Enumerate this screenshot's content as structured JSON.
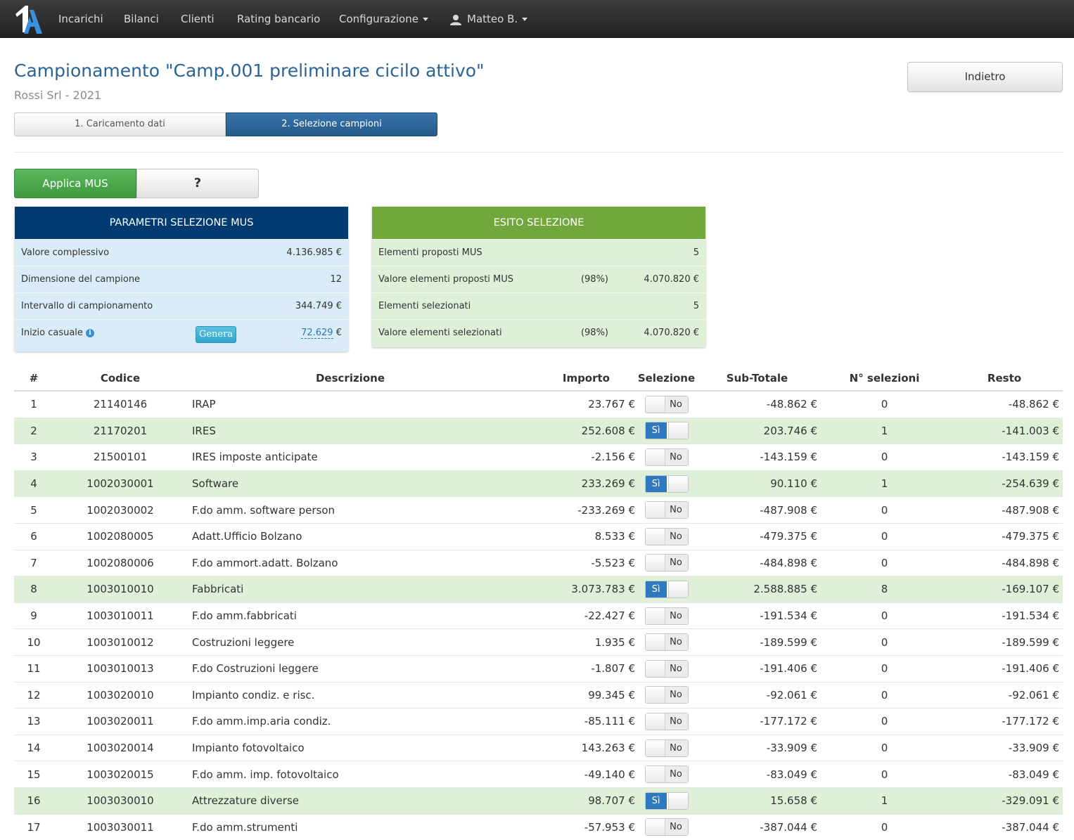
{
  "nav": {
    "logo_text": "1A",
    "items": [
      "Incarichi",
      "Bilanci",
      "Clienti",
      "Rating bancario"
    ],
    "config_label": "Configurazione",
    "user_label": "Matteo B."
  },
  "header": {
    "title": "Campionamento \"Camp.001 preliminare cicilo attivo\"",
    "subtitle": "Rossi Srl - 2021",
    "back_label": "Indietro"
  },
  "steps": {
    "step1": "1. Caricamento dati",
    "step2": "2. Selezione campioni",
    "active": 2
  },
  "actions": {
    "mus_label": "Applica MUS",
    "help_label": "?"
  },
  "params_panel": {
    "title": "PARAMETRI SELEZIONE MUS",
    "rows": [
      {
        "label": "Valore complessivo",
        "value": "4.136.985 €"
      },
      {
        "label": "Dimensione del campione",
        "value": "12"
      },
      {
        "label": "Intervallo di campionamento",
        "value": "344.749 €"
      }
    ],
    "random_start": {
      "label": "Inizio casuale",
      "button": "Genera",
      "value": "72.629",
      "currency": "€"
    }
  },
  "result_panel": {
    "title": "ESITO SELEZIONE",
    "rows": [
      {
        "label": "Elementi proposti MUS",
        "pct": "",
        "value": "5"
      },
      {
        "label": "Valore elementi proposti MUS",
        "pct": "(98%)",
        "value": "4.070.820 €"
      },
      {
        "label": "Elementi selezionati",
        "pct": "",
        "value": "5"
      },
      {
        "label": "Valore elementi selezionati",
        "pct": "(98%)",
        "value": "4.070.820 €"
      }
    ]
  },
  "table": {
    "headers": {
      "num": "#",
      "code": "Codice",
      "desc": "Descrizione",
      "amount": "Importo",
      "selection": "Selezione",
      "subtotal": "Sub-Totale",
      "nsel": "N° selezioni",
      "rest": "Resto"
    },
    "toggle_on": "Sì",
    "toggle_off": "No",
    "rows": [
      {
        "num": "1",
        "code": "21140146",
        "desc": "IRAP",
        "amount": "23.767 €",
        "selected": false,
        "subtotal": "-48.862 €",
        "nsel": "0",
        "rest": "-48.862 €"
      },
      {
        "num": "2",
        "code": "21170201",
        "desc": "IRES",
        "amount": "252.608 €",
        "selected": true,
        "subtotal": "203.746 €",
        "nsel": "1",
        "rest": "-141.003 €"
      },
      {
        "num": "3",
        "code": "21500101",
        "desc": "IRES imposte anticipate",
        "amount": "-2.156 €",
        "selected": false,
        "subtotal": "-143.159 €",
        "nsel": "0",
        "rest": "-143.159 €"
      },
      {
        "num": "4",
        "code": "1002030001",
        "desc": "Software",
        "amount": "233.269 €",
        "selected": true,
        "subtotal": "90.110 €",
        "nsel": "1",
        "rest": "-254.639 €"
      },
      {
        "num": "5",
        "code": "1002030002",
        "desc": "F.do amm. software person",
        "amount": "-233.269 €",
        "selected": false,
        "subtotal": "-487.908 €",
        "nsel": "0",
        "rest": "-487.908 €"
      },
      {
        "num": "6",
        "code": "1002080005",
        "desc": "Adatt.Ufficio Bolzano",
        "amount": "8.533 €",
        "selected": false,
        "subtotal": "-479.375 €",
        "nsel": "0",
        "rest": "-479.375 €"
      },
      {
        "num": "7",
        "code": "1002080006",
        "desc": "F.do ammort.adatt. Bolzano",
        "amount": "-5.523 €",
        "selected": false,
        "subtotal": "-484.898 €",
        "nsel": "0",
        "rest": "-484.898 €"
      },
      {
        "num": "8",
        "code": "1003010010",
        "desc": "Fabbricati",
        "amount": "3.073.783 €",
        "selected": true,
        "subtotal": "2.588.885 €",
        "nsel": "8",
        "rest": "-169.107 €"
      },
      {
        "num": "9",
        "code": "1003010011",
        "desc": "F.do amm.fabbricati",
        "amount": "-22.427 €",
        "selected": false,
        "subtotal": "-191.534 €",
        "nsel": "0",
        "rest": "-191.534 €"
      },
      {
        "num": "10",
        "code": "1003010012",
        "desc": "Costruzioni leggere",
        "amount": "1.935 €",
        "selected": false,
        "subtotal": "-189.599 €",
        "nsel": "0",
        "rest": "-189.599 €"
      },
      {
        "num": "11",
        "code": "1003010013",
        "desc": "F.do Costruzioni leggere",
        "amount": "-1.807 €",
        "selected": false,
        "subtotal": "-191.406 €",
        "nsel": "0",
        "rest": "-191.406 €"
      },
      {
        "num": "12",
        "code": "1003020010",
        "desc": "Impianto condiz. e risc.",
        "amount": "99.345 €",
        "selected": false,
        "subtotal": "-92.061 €",
        "nsel": "0",
        "rest": "-92.061 €"
      },
      {
        "num": "13",
        "code": "1003020011",
        "desc": "F.do amm.imp.aria condiz.",
        "amount": "-85.111 €",
        "selected": false,
        "subtotal": "-177.172 €",
        "nsel": "0",
        "rest": "-177.172 €"
      },
      {
        "num": "14",
        "code": "1003020014",
        "desc": "Impianto fotovoltaico",
        "amount": "143.263 €",
        "selected": false,
        "subtotal": "-33.909 €",
        "nsel": "0",
        "rest": "-33.909 €"
      },
      {
        "num": "15",
        "code": "1003020015",
        "desc": "F.do amm. imp. fotovoltaico",
        "amount": "-49.140 €",
        "selected": false,
        "subtotal": "-83.049 €",
        "nsel": "0",
        "rest": "-83.049 €"
      },
      {
        "num": "16",
        "code": "1003030010",
        "desc": "Attrezzature diverse",
        "amount": "98.707 €",
        "selected": true,
        "subtotal": "15.658 €",
        "nsel": "1",
        "rest": "-329.091 €"
      },
      {
        "num": "17",
        "code": "1003030011",
        "desc": "F.do amm.strumenti",
        "amount": "-57.953 €",
        "selected": false,
        "subtotal": "-387.044 €",
        "nsel": "0",
        "rest": "-387.044 €"
      }
    ]
  },
  "colors": {
    "navbar": "#2b2b2b",
    "title": "#2a6496",
    "params_head": "#023a72",
    "result_head": "#72a83b",
    "selected_row": "#dff0d8",
    "accent_blue": "#2f7abf",
    "button_green": "#5cb85c"
  }
}
